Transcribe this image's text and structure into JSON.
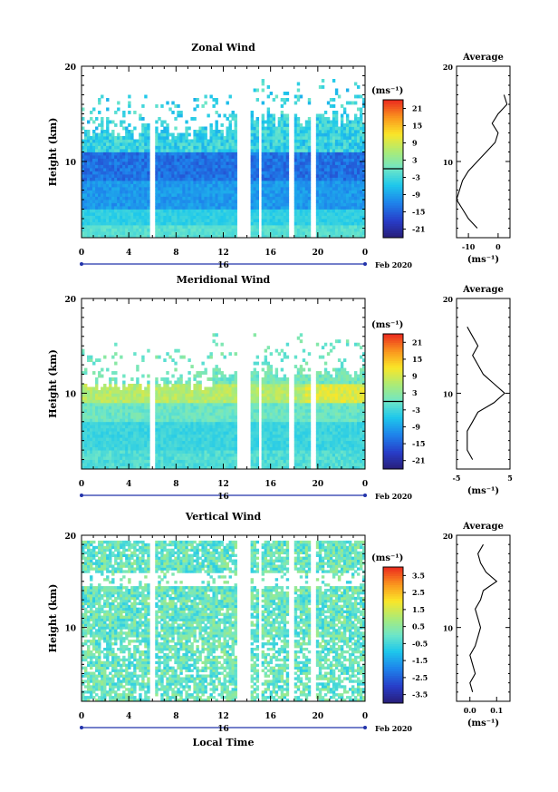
{
  "chart_data": [
    {
      "type": "heatmap",
      "title": "Zonal Wind",
      "ylabel": "Height (km)",
      "ylim": [
        2,
        20
      ],
      "yticks": [
        10,
        20
      ],
      "xlim": [
        0,
        24
      ],
      "xticks": [
        "0",
        "4",
        "8",
        "12",
        "16",
        "20",
        "0"
      ],
      "date_label": "16",
      "month_label": "Feb 2020",
      "colorbar": {
        "unit": "(ms⁻¹)",
        "range": [
          -24,
          24
        ],
        "ticks": [
          "21",
          "15",
          "9",
          "3",
          "-3",
          "-9",
          "-15",
          "-21"
        ],
        "zero_line": 0
      },
      "profile": {
        "title": "Average",
        "xlim": [
          -14,
          4
        ],
        "xticks": [
          "-10",
          "0"
        ],
        "xlabel": "(ms⁻¹)",
        "heights": [
          3,
          4,
          5,
          6,
          7,
          8,
          9,
          10,
          11,
          12,
          13,
          14,
          15,
          16,
          17
        ],
        "values": [
          -7,
          -10,
          -12,
          -14,
          -13,
          -12,
          -10,
          -7,
          -4,
          -1,
          0,
          -2,
          0,
          3,
          2
        ]
      }
    },
    {
      "type": "heatmap",
      "title": "Meridional Wind",
      "ylabel": "Height (km)",
      "ylim": [
        2,
        20
      ],
      "yticks": [
        10,
        20
      ],
      "xlim": [
        0,
        24
      ],
      "xticks": [
        "0",
        "4",
        "8",
        "12",
        "16",
        "20",
        "0"
      ],
      "date_label": "16",
      "month_label": "Feb 2020",
      "colorbar": {
        "unit": "(ms⁻¹)",
        "range": [
          -24,
          24
        ],
        "ticks": [
          "21",
          "15",
          "9",
          "3",
          "-3",
          "-9",
          "-15",
          "-21"
        ],
        "zero_line": 0
      },
      "profile": {
        "title": "Average",
        "xlim": [
          -5,
          5
        ],
        "xticks": [
          "-5",
          "5"
        ],
        "xlabel": "(ms⁻¹)",
        "heights": [
          3,
          4,
          5,
          6,
          7,
          8,
          9,
          10,
          11,
          12,
          13,
          14,
          15,
          16,
          17
        ],
        "values": [
          -2,
          -3,
          -3,
          -3,
          -2,
          -1,
          2,
          4,
          2,
          0,
          -1,
          -2,
          -1,
          -2,
          -3
        ]
      }
    },
    {
      "type": "heatmap",
      "title": "Vertical Wind",
      "ylabel": "Height (km)",
      "ylim": [
        2,
        20
      ],
      "yticks": [
        10,
        20
      ],
      "xlim": [
        0,
        24
      ],
      "xticks": [
        "0",
        "4",
        "8",
        "12",
        "16",
        "20",
        "0"
      ],
      "date_label": "16",
      "month_label": "Feb 2020",
      "xlabel": "Local Time",
      "colorbar": {
        "unit": "(ms⁻¹)",
        "range": [
          -4,
          4
        ],
        "ticks": [
          "3.5",
          "2.5",
          "1.5",
          "0.5",
          "-0.5",
          "-1.5",
          "-2.5",
          "-3.5"
        ]
      },
      "profile": {
        "title": "Average",
        "xlim": [
          -0.05,
          0.15
        ],
        "xticks": [
          "0.0",
          "0.1"
        ],
        "xlabel": "(ms⁻¹)",
        "heights": [
          3,
          4,
          5,
          6,
          7,
          8,
          9,
          10,
          11,
          12,
          13,
          14,
          15,
          16,
          17,
          18,
          19
        ],
        "values": [
          0.01,
          0.0,
          0.02,
          0.01,
          0.0,
          0.02,
          0.03,
          0.04,
          0.03,
          0.02,
          0.04,
          0.05,
          0.1,
          0.06,
          0.04,
          0.03,
          0.05
        ]
      }
    }
  ]
}
